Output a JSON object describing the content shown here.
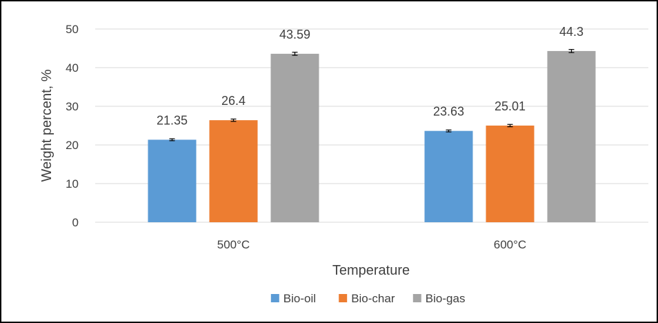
{
  "chart_data": {
    "type": "bar",
    "title": "",
    "xlabel": "Temperature",
    "ylabel": "Weight percent, %",
    "ylim": [
      0,
      50
    ],
    "yticks": [
      0,
      10,
      20,
      30,
      40,
      50
    ],
    "grid": true,
    "legend_position": "bottom",
    "categories": [
      "500°C",
      "600°C"
    ],
    "series": [
      {
        "name": "Bio-oil",
        "color": "#5B9BD5",
        "values": [
          21.35,
          23.63
        ],
        "labels": [
          "21.35",
          "23.63"
        ],
        "error": [
          0.25,
          0.25
        ]
      },
      {
        "name": "Bio-char",
        "color": "#ED7D31",
        "values": [
          26.4,
          25.01
        ],
        "labels": [
          "26.4",
          "25.01"
        ],
        "error": [
          0.3,
          0.3
        ]
      },
      {
        "name": "Bio-gas",
        "color": "#A5A5A5",
        "values": [
          43.59,
          44.3
        ],
        "labels": [
          "43.59",
          "44.3"
        ],
        "error": [
          0.4,
          0.4
        ]
      }
    ]
  }
}
